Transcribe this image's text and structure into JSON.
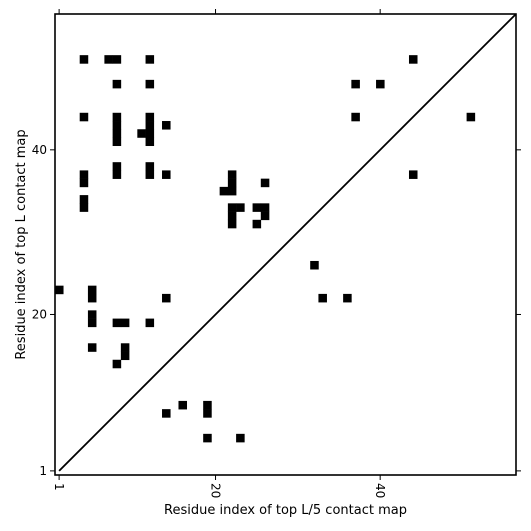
{
  "chart_data": {
    "type": "heatmap",
    "title": "",
    "xlabel": "Residue index of top L/5 contact map",
    "ylabel": "Residue index of top L contact map",
    "xlim": [
      0.5,
      56.5
    ],
    "ylim": [
      0.5,
      56.5
    ],
    "xticks": [
      1,
      20,
      40
    ],
    "yticks": [
      1,
      20,
      40
    ],
    "grid": false,
    "diagonal_line": true,
    "colors": {
      "cell": "#000000",
      "background": "#ffffff",
      "line": "#000000"
    },
    "cells": [
      [
        4,
        51
      ],
      [
        7,
        51
      ],
      [
        8,
        51
      ],
      [
        12,
        51
      ],
      [
        8,
        48
      ],
      [
        12,
        48
      ],
      [
        37,
        48
      ],
      [
        40,
        48
      ],
      [
        44,
        51
      ],
      [
        4,
        44
      ],
      [
        8,
        44
      ],
      [
        12,
        44
      ],
      [
        37,
        44
      ],
      [
        51,
        44
      ],
      [
        8,
        43
      ],
      [
        12,
        43
      ],
      [
        14,
        43
      ],
      [
        8,
        42
      ],
      [
        11,
        42
      ],
      [
        12,
        42
      ],
      [
        8,
        41
      ],
      [
        12,
        41
      ],
      [
        8,
        38
      ],
      [
        12,
        38
      ],
      [
        4,
        37
      ],
      [
        8,
        37
      ],
      [
        12,
        37
      ],
      [
        14,
        37
      ],
      [
        22,
        37
      ],
      [
        44,
        37
      ],
      [
        4,
        36
      ],
      [
        22,
        36
      ],
      [
        26,
        36
      ],
      [
        21,
        35
      ],
      [
        22,
        35
      ],
      [
        4,
        34
      ],
      [
        4,
        33
      ],
      [
        22,
        33
      ],
      [
        23,
        33
      ],
      [
        25,
        33
      ],
      [
        26,
        33
      ],
      [
        22,
        32
      ],
      [
        26,
        32
      ],
      [
        22,
        31
      ],
      [
        25,
        31
      ],
      [
        32,
        26
      ],
      [
        1,
        23
      ],
      [
        5,
        23
      ],
      [
        5,
        22
      ],
      [
        14,
        22
      ],
      [
        33,
        22
      ],
      [
        36,
        22
      ],
      [
        5,
        20
      ],
      [
        5,
        19
      ],
      [
        8,
        19
      ],
      [
        9,
        19
      ],
      [
        12,
        19
      ],
      [
        5,
        16
      ],
      [
        9,
        16
      ],
      [
        9,
        15
      ],
      [
        8,
        14
      ],
      [
        16,
        9
      ],
      [
        19,
        9
      ],
      [
        14,
        8
      ],
      [
        19,
        8
      ],
      [
        19,
        5
      ],
      [
        23,
        5
      ]
    ]
  }
}
